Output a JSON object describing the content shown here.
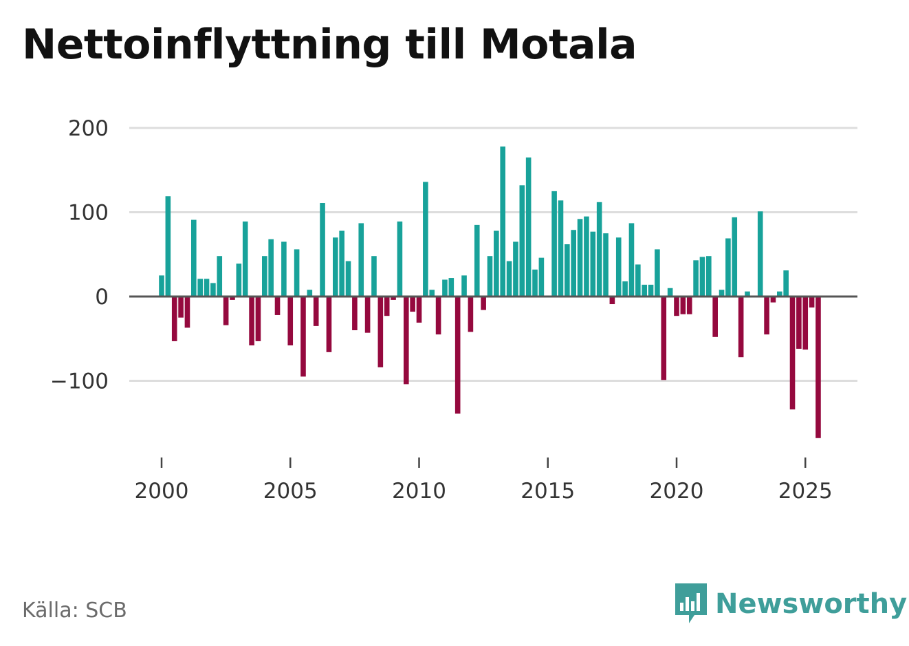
{
  "title": "Nettoinflyttning till Motala",
  "source": "Källa: SCB",
  "brand": {
    "name": "Newsworthy",
    "icon": "newsworthy-logo-icon"
  },
  "colors": {
    "positive": "#18a29a",
    "negative": "#95093e",
    "grid": "#dddddd",
    "zero_line": "#555555",
    "brand": "#3f9e9a"
  },
  "chart_data": {
    "type": "bar",
    "title": "Nettoinflyttning till Motala",
    "xlabel": "",
    "ylabel": "",
    "ylim": [
      -170,
      200
    ],
    "yticks": [
      200,
      100,
      0,
      -100
    ],
    "ytick_labels": [
      "200",
      "100",
      "0",
      "−100"
    ],
    "xticks": [
      2000,
      2005,
      2010,
      2015,
      2020,
      2025
    ],
    "xtick_labels": [
      "2000",
      "2005",
      "2010",
      "2015",
      "2020",
      "2025"
    ],
    "frequency": "quarterly",
    "start": "2000-Q1",
    "x": [
      2000.0,
      2000.25,
      2000.5,
      2000.75,
      2001.0,
      2001.25,
      2001.5,
      2001.75,
      2002.0,
      2002.25,
      2002.5,
      2002.75,
      2003.0,
      2003.25,
      2003.5,
      2003.75,
      2004.0,
      2004.25,
      2004.5,
      2004.75,
      2005.0,
      2005.25,
      2005.5,
      2005.75,
      2006.0,
      2006.25,
      2006.5,
      2006.75,
      2007.0,
      2007.25,
      2007.5,
      2007.75,
      2008.0,
      2008.25,
      2008.5,
      2008.75,
      2009.0,
      2009.25,
      2009.5,
      2009.75,
      2010.0,
      2010.25,
      2010.5,
      2010.75,
      2011.0,
      2011.25,
      2011.5,
      2011.75,
      2012.0,
      2012.25,
      2012.5,
      2012.75,
      2013.0,
      2013.25,
      2013.5,
      2013.75,
      2014.0,
      2014.25,
      2014.5,
      2014.75,
      2015.0,
      2015.25,
      2015.5,
      2015.75,
      2016.0,
      2016.25,
      2016.5,
      2016.75,
      2017.0,
      2017.25,
      2017.5,
      2017.75,
      2018.0,
      2018.25,
      2018.5,
      2018.75,
      2019.0,
      2019.25,
      2019.5,
      2019.75,
      2020.0,
      2020.25,
      2020.5,
      2020.75,
      2021.0,
      2021.25,
      2021.5,
      2021.75,
      2022.0,
      2022.25,
      2022.5,
      2022.75,
      2023.0,
      2023.25,
      2023.5,
      2023.75,
      2024.0,
      2024.25,
      2024.5,
      2024.75,
      2025.0,
      2025.25,
      2025.5
    ],
    "values": [
      25,
      119,
      -53,
      -25,
      -37,
      91,
      21,
      21,
      16,
      48,
      -34,
      -4,
      39,
      89,
      -58,
      -53,
      48,
      68,
      -22,
      65,
      -58,
      56,
      -95,
      8,
      -35,
      111,
      -66,
      70,
      78,
      42,
      -40,
      87,
      -43,
      48,
      -84,
      -23,
      -4,
      89,
      -104,
      -18,
      -31,
      136,
      8,
      -45,
      20,
      22,
      -139,
      25,
      -42,
      85,
      -16,
      48,
      78,
      178,
      42,
      65,
      132,
      165,
      32,
      46,
      0,
      125,
      114,
      62,
      79,
      92,
      95,
      77,
      112,
      75,
      -9,
      70,
      18,
      87,
      38,
      14,
      14,
      56,
      -99,
      10,
      -23,
      -21,
      -21,
      43,
      47,
      48,
      -48,
      8,
      69,
      94,
      -72,
      6,
      0,
      101,
      -45,
      -7,
      6,
      31,
      -134,
      -62,
      -63,
      -13,
      -168
    ]
  }
}
